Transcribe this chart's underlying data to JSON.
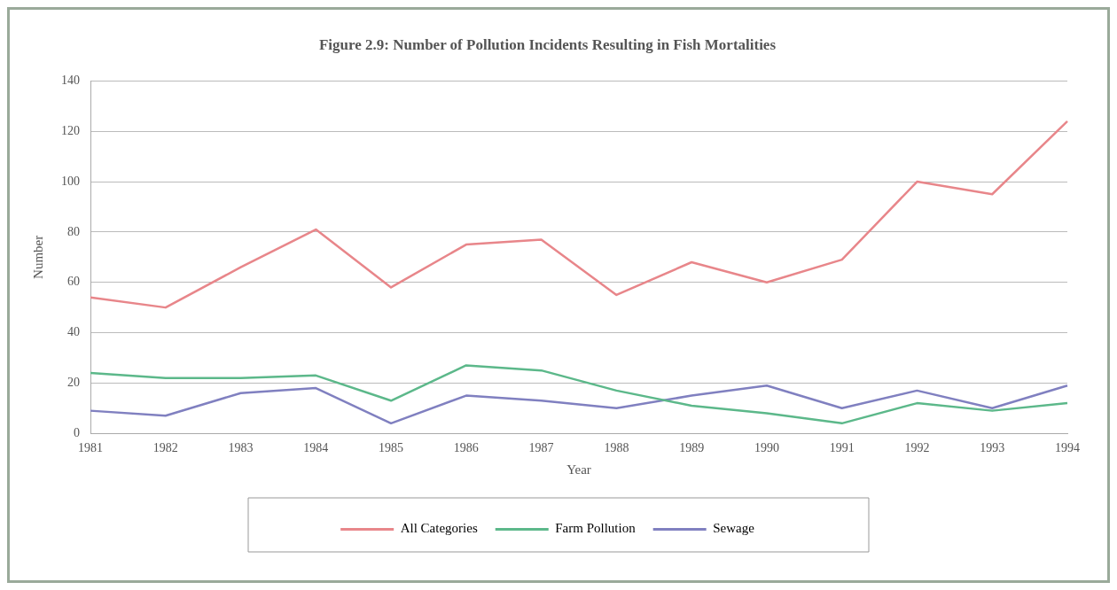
{
  "chart_data": {
    "type": "line",
    "title": "Figure 2.9: Number of Pollution Incidents Resulting in Fish Mortalities",
    "xlabel": "Year",
    "ylabel": "Number",
    "categories": [
      "1981",
      "1982",
      "1983",
      "1984",
      "1985",
      "1986",
      "1987",
      "1988",
      "1989",
      "1990",
      "1991",
      "1992",
      "1993",
      "1994"
    ],
    "series": [
      {
        "name": "All Categories",
        "color": "#e8868a",
        "values": [
          54,
          50,
          66,
          81,
          58,
          75,
          77,
          55,
          68,
          60,
          69,
          100,
          95,
          124
        ]
      },
      {
        "name": "Farm Pollution",
        "color": "#5cb88a",
        "values": [
          24,
          22,
          22,
          23,
          13,
          27,
          25,
          17,
          11,
          8,
          4,
          12,
          9,
          12
        ]
      },
      {
        "name": "Sewage",
        "color": "#8080c0",
        "values": [
          9,
          7,
          16,
          18,
          4,
          15,
          13,
          10,
          15,
          19,
          10,
          17,
          10,
          19
        ]
      }
    ],
    "ylim": [
      0,
      140
    ],
    "yticks": [
      0,
      20,
      40,
      60,
      80,
      100,
      120,
      140
    ],
    "grid": "y",
    "legend": "bottom",
    "marker": "none",
    "line_style": "solid"
  }
}
